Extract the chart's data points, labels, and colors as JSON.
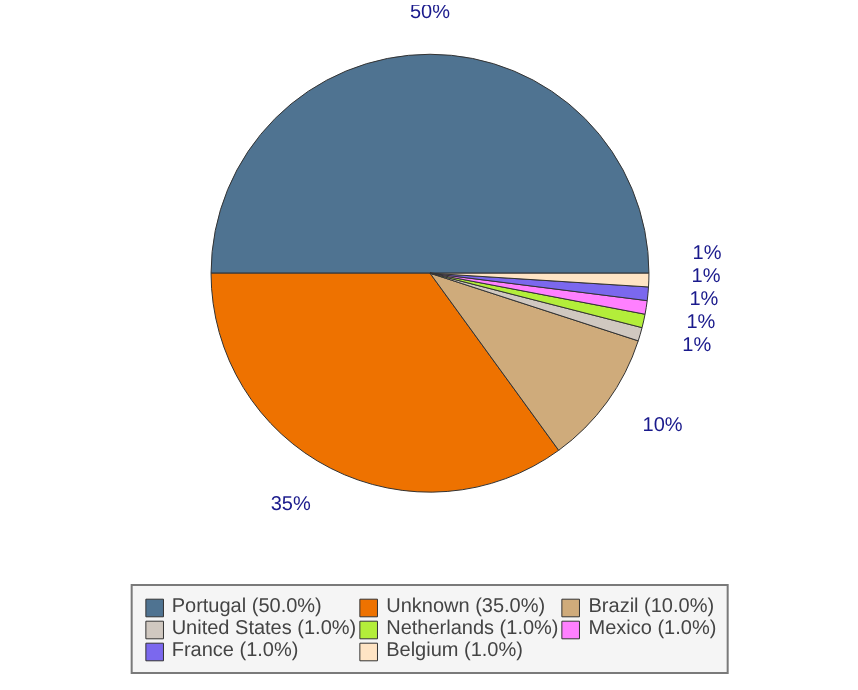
{
  "chart_data": {
    "type": "pie",
    "categories": [
      "Portugal (50.0%)",
      "Unknown (35.0%)",
      "Brazil (10.0%)",
      "United States (1.0%)",
      "Netherlands (1.0%)",
      "Mexico (1.0%)",
      "France (1.0%)",
      "Belgium (1.0%)"
    ],
    "values": [
      50,
      35,
      10,
      1,
      1,
      1,
      1,
      1
    ],
    "colors": [
      "#4f7391",
      "#ee7200",
      "#cfab7b",
      "#d0c8c0",
      "#b3ee3a",
      "#ff80ff",
      "#7b68ee",
      "#ffe4c4"
    ],
    "value_labels": [
      "50%",
      "35%",
      "10%",
      "1%",
      "1%",
      "1%",
      "1%",
      "1%"
    ],
    "legend": "bottom"
  }
}
